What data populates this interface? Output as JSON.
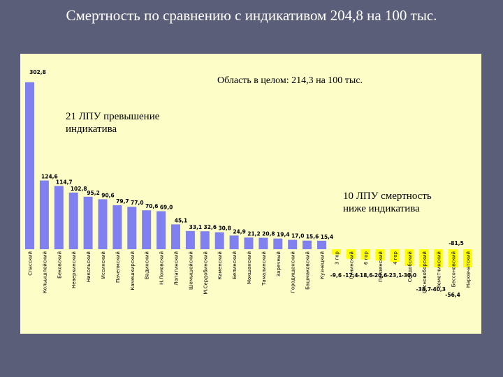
{
  "slide": {
    "title": "Смертность по сравнению с  индикативом 204,8 на 100 тыс."
  },
  "notes": {
    "region": "Область в целом: 214,3 на 100 тыс.",
    "above": [
      "21 ЛПУ превышение",
      "индикатива"
    ],
    "below": [
      "10 ЛПУ смертность",
      "ниже индикатива"
    ]
  },
  "colors": {
    "positive": "#8080f0",
    "negative": "#ffff00",
    "panel": "#fdfdc8",
    "background": "#5a5e79"
  },
  "chart_data": {
    "type": "bar",
    "title": "Смертность по сравнению с  индикативом 204,8 на 100 тыс.",
    "xlabel": "",
    "ylabel": "",
    "ylim": [
      -56.4,
      302.8
    ],
    "categories": [
      "Спасский",
      "Кольышлейский",
      "Бековский",
      "Неверкинский",
      "Никольский",
      "Иссинский",
      "Пачелмский",
      "Камешкирский",
      "Вадинский",
      "Н.Ломовский",
      "Лопатинский",
      "Шемышейский",
      "М.Сердобинский",
      "Каменский",
      "Белинский",
      "Мокшанский",
      "Тамалинский",
      "Заречный",
      "Городищенский",
      "Башмаковский",
      "Кузнецкий",
      "3 гор",
      "Лунинский",
      "6 гор",
      "Пензенский",
      "4 гор",
      "Сердобский",
      "Сосновоборский",
      "Земетчинский",
      "Бессоновский",
      "Наровчатский"
    ],
    "values": [
      302.8,
      124.6,
      114.7,
      102.8,
      95.2,
      90.6,
      79.7,
      77.0,
      70.6,
      69.0,
      45.1,
      33.1,
      32.6,
      30.8,
      24.9,
      21.2,
      20.8,
      19.4,
      17.0,
      15.6,
      15.4,
      -9.6,
      -17.4,
      -18.6,
      -20.6,
      -23.1,
      -30.0,
      -38.7,
      -40.3,
      -56.4,
      -81.5
    ],
    "value_labels": [
      "302,8",
      "124,6",
      "114,7",
      "102,8",
      "95,2",
      "90,6",
      "79,7",
      "77,0",
      "70,6",
      "69,0",
      "45,1",
      "33,1",
      "32,6",
      "30,8",
      "24,9",
      "21,2",
      "20,8",
      "19,4",
      "17,0",
      "15,6",
      "15,4",
      "-9,6",
      "-17,4",
      "-18,6",
      "-20,6",
      "-23,1",
      "-30,0",
      "-38,7",
      "-40,3",
      "-56,4",
      "-81,5"
    ],
    "legend": "none",
    "grid": false
  }
}
